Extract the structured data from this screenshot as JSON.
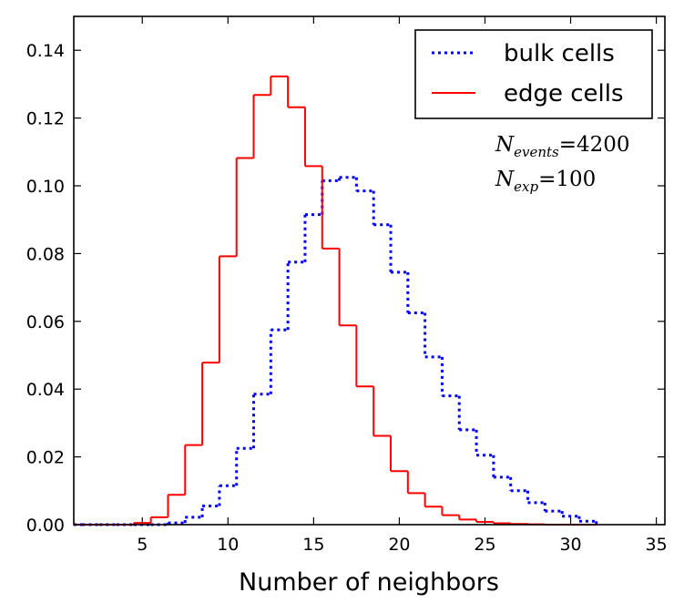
{
  "chart_data": {
    "type": "step",
    "title": "",
    "xlabel": "Number of neighbors",
    "ylabel": "",
    "xlim": [
      1,
      35.5
    ],
    "ylim": [
      0,
      0.15
    ],
    "xticks": [
      5,
      10,
      15,
      20,
      25,
      30,
      35
    ],
    "xtick_labels": [
      "5",
      "10",
      "15",
      "20",
      "25",
      "30",
      "35"
    ],
    "yticks": [
      0.0,
      0.02,
      0.04,
      0.06,
      0.08,
      0.1,
      0.12,
      0.14
    ],
    "ytick_labels": [
      "0.00",
      "0.02",
      "0.04",
      "0.06",
      "0.08",
      "0.10",
      "0.12",
      "0.14"
    ],
    "grid": false,
    "legend_position": "top-right",
    "bin_edges": [
      0.5,
      1.5,
      2.5,
      3.5,
      4.5,
      5.5,
      6.5,
      7.5,
      8.5,
      9.5,
      10.5,
      11.5,
      12.5,
      13.5,
      14.5,
      15.5,
      16.5,
      17.5,
      18.5,
      19.5,
      20.5,
      21.5,
      22.5,
      23.5,
      24.5,
      25.5,
      26.5,
      27.5,
      28.5,
      29.5,
      30.5,
      31.5
    ],
    "series": [
      {
        "name": "bulk cells",
        "style": "dotted",
        "color": "#0000ff",
        "values": [
          0,
          0,
          0,
          0,
          0,
          0,
          0.0005,
          0.0022,
          0.0055,
          0.0115,
          0.0225,
          0.0385,
          0.0575,
          0.0775,
          0.0915,
          0.1015,
          0.1025,
          0.0985,
          0.0885,
          0.0745,
          0.0625,
          0.0495,
          0.038,
          0.028,
          0.0205,
          0.014,
          0.01,
          0.0065,
          0.004,
          0.0025,
          0.001
        ]
      },
      {
        "name": "edge cells",
        "style": "solid",
        "color": "#ff0000",
        "values": [
          0,
          0,
          0,
          0,
          0.0005,
          0.0022,
          0.0088,
          0.0235,
          0.0478,
          0.0792,
          0.1082,
          0.1268,
          0.1323,
          0.1232,
          0.1058,
          0.0815,
          0.0588,
          0.0408,
          0.0262,
          0.0158,
          0.0093,
          0.0053,
          0.0028,
          0.0015,
          0.0008,
          0.0004,
          0.0002,
          0.0001,
          0,
          0,
          0
        ]
      }
    ],
    "annotations": {
      "events": {
        "label": "N",
        "subscript": "events",
        "equals": "=",
        "value": "4200"
      },
      "exp": {
        "label": "N",
        "subscript": "exp",
        "equals": "=",
        "value": "100"
      }
    }
  }
}
